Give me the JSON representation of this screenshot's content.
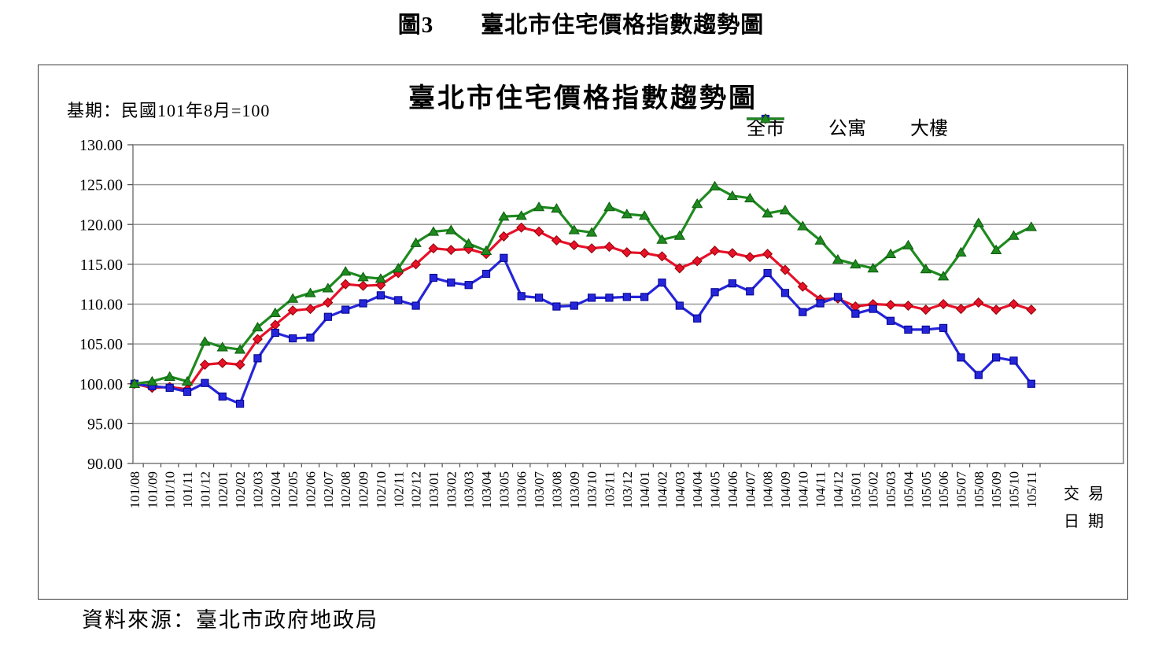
{
  "page": {
    "figure_title": "圖3　　臺北市住宅價格指數趨勢圖",
    "source": "資料來源：臺北市政府地政局"
  },
  "chart": {
    "title": "臺北市住宅價格指數趨勢圖",
    "base_period_note": "基期：民國101年8月=100",
    "x_axis_label_line1": "交易",
    "x_axis_label_line2": "日期"
  },
  "chart_data": {
    "type": "line",
    "title": "臺北市住宅價格指數趨勢圖",
    "xlabel": "交易日期",
    "ylabel": "",
    "ylim": [
      90,
      130
    ],
    "ytick_step": 5,
    "y_ticks": [
      "130.00",
      "125.00",
      "120.00",
      "115.00",
      "110.00",
      "105.00",
      "100.00",
      "95.00",
      "90.00"
    ],
    "grid": true,
    "legend_position": "top-right",
    "categories": [
      "101/08",
      "101/09",
      "101/10",
      "101/11",
      "101/12",
      "102/01",
      "102/02",
      "102/03",
      "102/04",
      "102/05",
      "102/06",
      "102/07",
      "102/08",
      "102/09",
      "102/10",
      "102/11",
      "102/12",
      "103/01",
      "103/02",
      "103/03",
      "103/04",
      "103/05",
      "103/06",
      "103/07",
      "103/08",
      "103/09",
      "103/10",
      "103/11",
      "103/12",
      "104/01",
      "104/02",
      "104/03",
      "104/04",
      "104/05",
      "104/06",
      "104/07",
      "104/08",
      "104/09",
      "104/10",
      "104/11",
      "104/12",
      "105/01",
      "105/02",
      "105/03",
      "105/04",
      "105/05",
      "105/06",
      "105/07",
      "105/08",
      "105/09",
      "105/10",
      "105/11"
    ],
    "series": [
      {
        "name": "全市",
        "marker": "diamond",
        "color": "#E8112A",
        "marker_stroke": "#8B0000",
        "values": [
          100.0,
          99.5,
          99.6,
          99.3,
          102.4,
          102.6,
          102.4,
          105.6,
          107.4,
          109.2,
          109.4,
          110.2,
          112.5,
          112.3,
          112.4,
          113.9,
          115.0,
          117.0,
          116.8,
          116.9,
          116.3,
          118.5,
          119.6,
          119.1,
          118.0,
          117.4,
          117.0,
          117.2,
          116.5,
          116.4,
          116.0,
          114.5,
          115.4,
          116.7,
          116.4,
          115.9,
          116.3,
          114.3,
          112.2,
          110.6,
          110.7,
          109.7,
          110.0,
          109.9,
          109.8,
          109.3,
          110.0,
          109.4,
          110.2,
          109.3,
          110.0,
          109.3
        ]
      },
      {
        "name": "公寓",
        "marker": "square",
        "color": "#2525D9",
        "marker_stroke": "#00008B",
        "values": [
          100.0,
          99.7,
          99.5,
          99.0,
          100.1,
          98.4,
          97.5,
          103.2,
          106.4,
          105.7,
          105.8,
          108.4,
          109.3,
          110.1,
          111.1,
          110.5,
          109.8,
          113.3,
          112.7,
          112.4,
          113.8,
          115.8,
          111.0,
          110.8,
          109.7,
          109.8,
          110.8,
          110.8,
          110.9,
          110.9,
          112.7,
          109.8,
          108.2,
          111.5,
          112.6,
          111.6,
          113.9,
          111.4,
          109.0,
          110.1,
          110.9,
          108.8,
          109.4,
          107.9,
          106.8,
          106.8,
          107.0,
          103.3,
          101.1,
          103.3,
          102.9,
          100.0
        ]
      },
      {
        "name": "大樓",
        "marker": "triangle",
        "color": "#1F8A1F",
        "marker_stroke": "#0B5A0B",
        "values": [
          100.0,
          100.3,
          100.9,
          100.3,
          105.3,
          104.6,
          104.3,
          107.1,
          108.9,
          110.7,
          111.4,
          112.0,
          114.1,
          113.4,
          113.2,
          114.5,
          117.7,
          119.1,
          119.3,
          117.6,
          116.7,
          121.0,
          121.1,
          122.2,
          122.0,
          119.3,
          119.0,
          122.2,
          121.3,
          121.1,
          118.1,
          118.6,
          122.6,
          124.8,
          123.6,
          123.3,
          121.4,
          121.8,
          119.8,
          118.0,
          115.6,
          115.0,
          114.5,
          116.3,
          117.4,
          114.4,
          113.5,
          116.5,
          120.2,
          116.8,
          118.6,
          119.7
        ]
      }
    ]
  }
}
